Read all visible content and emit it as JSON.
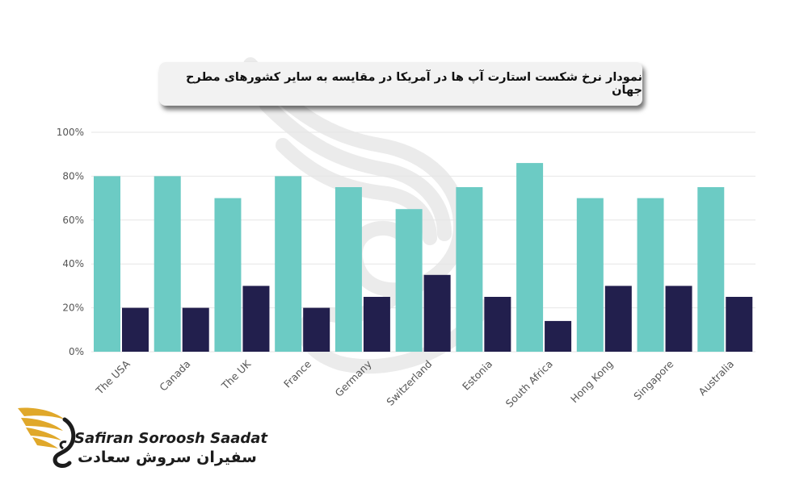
{
  "title": "نمودار نرخ شکست استارت آپ ها در آمریکا در مقایسه به سایر کشورهای مطرح جهان",
  "brand": {
    "name_en": "Safiran Soroosh Saadat",
    "name_fa": "سفیران سروش سعادت"
  },
  "colors": {
    "series_1": "#6ccbc4",
    "series_2": "#221f4d",
    "grid": "#e6e6e6",
    "tick_text": "#555555",
    "logo_gold": "#e0a82a"
  },
  "chart_data": {
    "type": "bar",
    "categories": [
      "The USA",
      "Canada",
      "The UK",
      "France",
      "Germany",
      "Switzerland",
      "Estonia",
      "South Africa",
      "Hong Kong",
      "Singapore",
      "Australia"
    ],
    "series": [
      {
        "values": [
          80,
          80,
          70,
          80,
          75,
          65,
          75,
          86,
          70,
          70,
          75
        ]
      },
      {
        "values": [
          20,
          20,
          30,
          20,
          25,
          35,
          25,
          14,
          30,
          30,
          25
        ]
      }
    ],
    "ylim": [
      0,
      100
    ],
    "yticks": [
      "0%",
      "20%",
      "40%",
      "60%",
      "80%",
      "100%"
    ],
    "grid": true,
    "xlabel": "",
    "ylabel": ""
  }
}
